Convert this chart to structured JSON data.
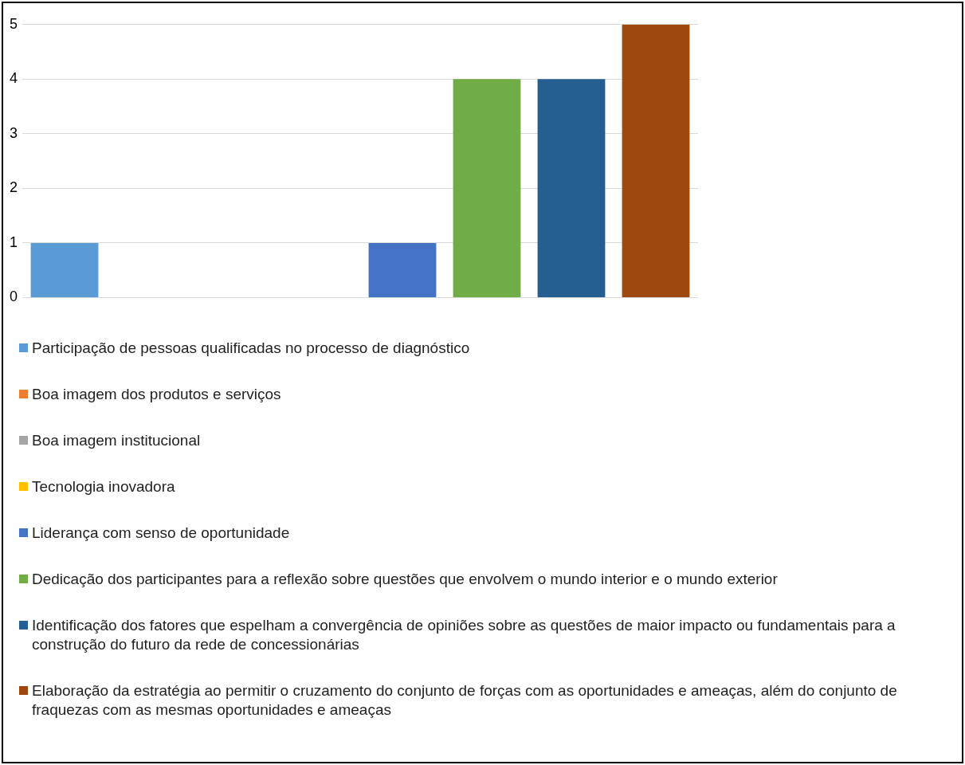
{
  "chart_data": {
    "type": "bar",
    "categories": [
      null
    ],
    "ylim": [
      0,
      5
    ],
    "yticks": [
      0,
      1,
      2,
      3,
      4,
      5
    ],
    "grid": "y",
    "legend": "bottom",
    "series": [
      {
        "name": "Participação de pessoas qualificadas no processo de diagnóstico",
        "color": "#5b9bd5",
        "values": [
          1
        ]
      },
      {
        "name": "Boa imagem dos produtos e serviços",
        "color": "#ed7d31",
        "values": [
          0
        ]
      },
      {
        "name": "Boa imagem institucional",
        "color": "#a5a5a5",
        "values": [
          0
        ]
      },
      {
        "name": "Tecnologia inovadora",
        "color": "#ffc000",
        "values": [
          0
        ]
      },
      {
        "name": "Liderança com senso de oportunidade",
        "color": "#4472c4",
        "values": [
          1
        ]
      },
      {
        "name": "Dedicação dos participantes para a reflexão sobre questões que envolvem o mundo interior e o mundo exterior",
        "color": "#70ad47",
        "values": [
          4
        ]
      },
      {
        "name": "Identificação dos fatores que espelham a convergência de opiniões sobre as questões de maior impacto ou fundamentais para a construção do futuro da rede de concessionárias",
        "color": "#255e91",
        "values": [
          4
        ]
      },
      {
        "name": "Elaboração da estratégia ao permitir o cruzamento do conjunto de forças com as oportunidades e ameaças, além do conjunto de fraquezas com as mesmas oportunidades e ameaças",
        "color": "#9e480e",
        "values": [
          5
        ]
      }
    ]
  }
}
